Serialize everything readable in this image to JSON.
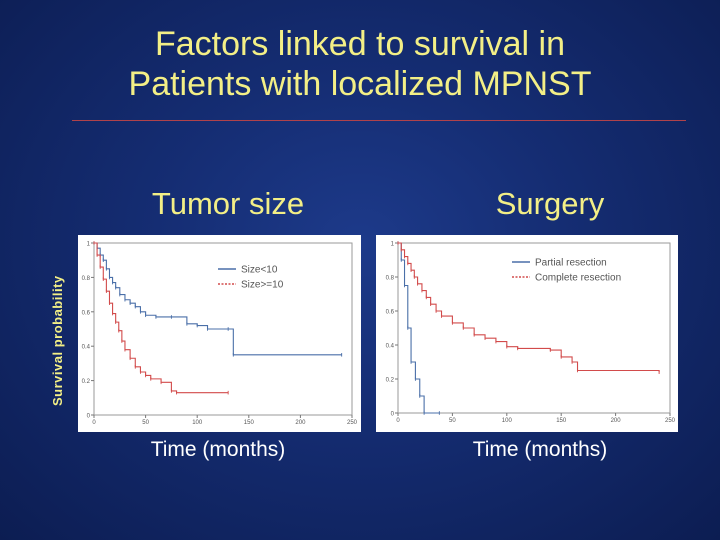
{
  "title_line1": "Factors linked to survival in",
  "title_line2": "Patients with localized MPNST",
  "shared_ylabel": "Survival probability",
  "colors": {
    "blue_series": "#4a6fa8",
    "red_series": "#d24b4b",
    "title": "#f3ef86"
  },
  "chart_data": [
    {
      "type": "line",
      "title": "Tumor size",
      "xlabel": "Time (months)",
      "ylabel": "Survival probability",
      "xlim": [
        0,
        250
      ],
      "ylim": [
        0,
        1.0
      ],
      "xticks": [
        0,
        50,
        100,
        150,
        200,
        250
      ],
      "yticks": [
        0,
        0.2,
        0.4,
        0.6,
        0.8,
        1.0
      ],
      "legend_position": "top-right",
      "series": [
        {
          "name": "Size<10",
          "color": "#4a6fa8",
          "points": [
            [
              0,
              1.0
            ],
            [
              3,
              0.97
            ],
            [
              6,
              0.93
            ],
            [
              9,
              0.9
            ],
            [
              12,
              0.85
            ],
            [
              15,
              0.8
            ],
            [
              18,
              0.77
            ],
            [
              21,
              0.74
            ],
            [
              25,
              0.7
            ],
            [
              30,
              0.67
            ],
            [
              35,
              0.65
            ],
            [
              40,
              0.63
            ],
            [
              45,
              0.6
            ],
            [
              50,
              0.58
            ],
            [
              60,
              0.57
            ],
            [
              75,
              0.57
            ],
            [
              90,
              0.53
            ],
            [
              100,
              0.52
            ],
            [
              110,
              0.5
            ],
            [
              130,
              0.5
            ],
            [
              135,
              0.35
            ],
            [
              240,
              0.35
            ]
          ]
        },
        {
          "name": "Size>=10",
          "color": "#d24b4b",
          "points": [
            [
              0,
              1.0
            ],
            [
              3,
              0.93
            ],
            [
              6,
              0.86
            ],
            [
              9,
              0.79
            ],
            [
              12,
              0.72
            ],
            [
              15,
              0.65
            ],
            [
              18,
              0.59
            ],
            [
              21,
              0.54
            ],
            [
              24,
              0.49
            ],
            [
              27,
              0.43
            ],
            [
              30,
              0.38
            ],
            [
              35,
              0.33
            ],
            [
              40,
              0.28
            ],
            [
              45,
              0.25
            ],
            [
              50,
              0.23
            ],
            [
              55,
              0.21
            ],
            [
              65,
              0.19
            ],
            [
              75,
              0.14
            ],
            [
              80,
              0.13
            ],
            [
              130,
              0.13
            ]
          ]
        }
      ]
    },
    {
      "type": "line",
      "title": "Surgery",
      "xlabel": "Time (months)",
      "ylabel": "Survival probability",
      "xlim": [
        0,
        250
      ],
      "ylim": [
        0,
        1.0
      ],
      "xticks": [
        0,
        50,
        100,
        150,
        200,
        250
      ],
      "yticks": [
        0,
        0.2,
        0.4,
        0.6,
        0.8,
        1.0
      ],
      "legend_position": "top-right",
      "series": [
        {
          "name": "Partial resection",
          "color": "#4a6fa8",
          "points": [
            [
              0,
              1.0
            ],
            [
              3,
              0.9
            ],
            [
              6,
              0.75
            ],
            [
              9,
              0.5
            ],
            [
              12,
              0.3
            ],
            [
              16,
              0.2
            ],
            [
              20,
              0.1
            ],
            [
              24,
              0.0
            ],
            [
              38,
              0.0
            ]
          ]
        },
        {
          "name": "Complete resection",
          "color": "#d24b4b",
          "points": [
            [
              0,
              1.0
            ],
            [
              3,
              0.96
            ],
            [
              6,
              0.92
            ],
            [
              9,
              0.88
            ],
            [
              12,
              0.84
            ],
            [
              15,
              0.8
            ],
            [
              18,
              0.76
            ],
            [
              22,
              0.72
            ],
            [
              26,
              0.68
            ],
            [
              30,
              0.64
            ],
            [
              35,
              0.6
            ],
            [
              40,
              0.57
            ],
            [
              50,
              0.53
            ],
            [
              60,
              0.5
            ],
            [
              70,
              0.46
            ],
            [
              80,
              0.44
            ],
            [
              90,
              0.42
            ],
            [
              100,
              0.39
            ],
            [
              110,
              0.38
            ],
            [
              140,
              0.37
            ],
            [
              150,
              0.33
            ],
            [
              160,
              0.3
            ],
            [
              165,
              0.25
            ],
            [
              240,
              0.24
            ]
          ]
        }
      ]
    }
  ]
}
